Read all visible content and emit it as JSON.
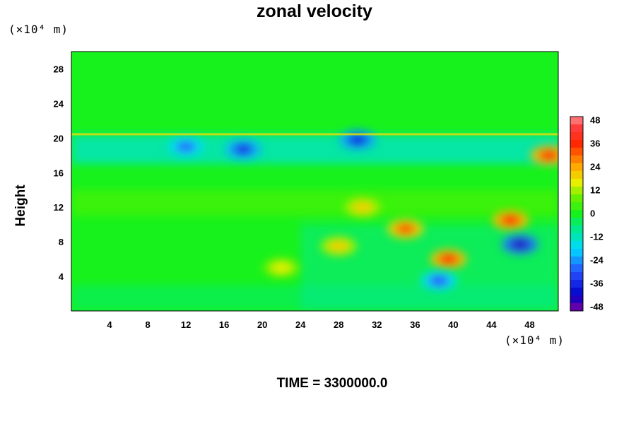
{
  "chart_data": {
    "type": "heatmap",
    "title": "zonal velocity",
    "ylabel": "Height",
    "xlabel": "",
    "x_unit": "(×10⁴ m)",
    "y_unit": "(×10⁴ m)",
    "x_ticks": [
      4,
      8,
      12,
      16,
      20,
      24,
      28,
      32,
      36,
      40,
      44,
      48
    ],
    "y_ticks": [
      4,
      8,
      12,
      16,
      20,
      24,
      28
    ],
    "xlim": [
      0,
      51
    ],
    "ylim": [
      0,
      30
    ],
    "colorbar": {
      "min": -50,
      "max": 50,
      "tick_values": [
        48,
        36,
        24,
        12,
        0,
        -12,
        -24,
        -36,
        -48
      ],
      "levels": 25
    },
    "features": [
      {
        "x": 46,
        "y": 10.5,
        "value": 36
      },
      {
        "x": 39.5,
        "y": 6,
        "value": 36
      },
      {
        "x": 35,
        "y": 9.5,
        "value": 32
      },
      {
        "x": 50,
        "y": 18,
        "value": 36
      },
      {
        "x": 47,
        "y": 7.7,
        "value": -44
      },
      {
        "x": 30,
        "y": 19.8,
        "value": -38
      },
      {
        "x": 18,
        "y": 18.7,
        "value": -36
      },
      {
        "x": 12,
        "y": 19,
        "value": -28
      },
      {
        "x": 38.5,
        "y": 3.5,
        "value": -30
      },
      {
        "x": 30.5,
        "y": 12,
        "value": 20
      },
      {
        "x": 28,
        "y": 7.5,
        "value": 20
      },
      {
        "x": 22,
        "y": 5,
        "value": 16
      }
    ],
    "grid": false,
    "legend": "right"
  },
  "footer": {
    "time_label": "TIME = 3300000.0"
  }
}
